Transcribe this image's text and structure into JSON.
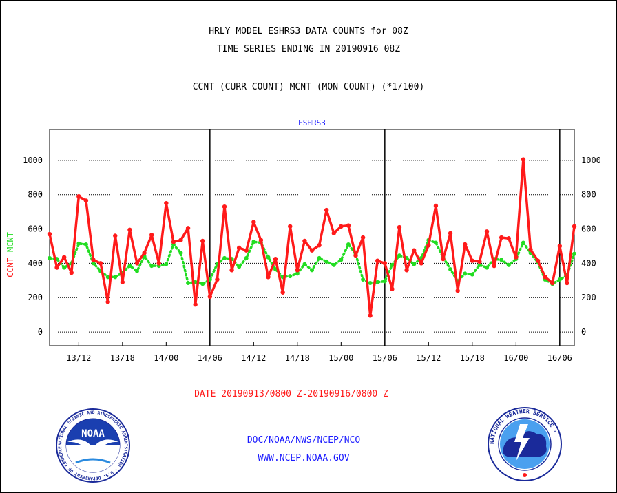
{
  "header": {
    "line1": "HRLY MODEL ESHRS3 DATA COUNTS for 08Z",
    "line2": "TIME SERIES ENDING IN 20190916 08Z",
    "line3": "CCNT (CURR COUNT) MCNT (MON COUNT) (*1/100)"
  },
  "footer": {
    "date_range": "DATE 20190913/0800 Z-20190916/0800 Z",
    "org": "DOC/NOAA/NWS/NCEP/NCO",
    "url": "WWW.NCEP.NOAA.GOV"
  },
  "logos": {
    "noaa_text": "NOAA",
    "noaa_ring": "NATIONAL OCEANIC AND ATMOSPHERIC ADMINISTRATION · U.S. DEPARTMENT OF COMMERCE ·",
    "nws_ring": "NATIONAL WEATHER SERVICE ·"
  },
  "colors": {
    "ccnt": "#ff1a1a",
    "mcnt": "#22dd22",
    "title_blue": "#1a1aff",
    "date_red": "#ff1a1a"
  },
  "chart_data": {
    "type": "line",
    "title": "ESHRS3",
    "ylabel": [
      "CCNT",
      "MCNT"
    ],
    "ylim": [
      -80,
      1180
    ],
    "yticks": [
      0,
      200,
      400,
      600,
      800,
      1000
    ],
    "x_tick_labels": [
      "13/12",
      "13/18",
      "14/00",
      "14/06",
      "14/12",
      "14/18",
      "15/00",
      "15/06",
      "15/12",
      "15/18",
      "16/00",
      "16/06"
    ],
    "x_tick_hours": [
      4,
      10,
      16,
      22,
      28,
      34,
      40,
      46,
      52,
      58,
      64,
      70
    ],
    "x_range_hours": [
      0,
      72
    ],
    "day_boundaries_hours": [
      22,
      46,
      70
    ],
    "grid": "horizontal dotted",
    "series": [
      {
        "name": "CCNT",
        "style": "solid",
        "x": [
          0,
          1,
          2,
          3,
          4,
          5,
          6,
          7,
          8,
          9,
          10,
          11,
          12,
          13,
          14,
          15,
          16,
          17,
          18,
          19,
          20,
          21,
          22,
          23,
          24,
          25,
          26,
          27,
          28,
          29,
          30,
          31,
          32,
          33,
          34,
          35,
          36,
          37,
          38,
          39,
          40,
          41,
          42,
          43,
          44,
          45,
          46,
          47,
          48,
          49,
          50,
          51,
          52,
          53,
          54,
          55,
          56,
          57,
          58,
          59,
          60,
          61,
          62,
          63,
          64,
          65,
          66,
          67,
          68,
          69,
          70,
          71,
          72
        ],
        "values": [
          570,
          375,
          435,
          345,
          790,
          765,
          420,
          400,
          175,
          560,
          290,
          595,
          400,
          460,
          565,
          400,
          750,
          525,
          535,
          605,
          160,
          530,
          205,
          305,
          730,
          360,
          490,
          475,
          640,
          535,
          320,
          425,
          230,
          615,
          360,
          530,
          475,
          505,
          710,
          575,
          615,
          620,
          445,
          550,
          95,
          415,
          400,
          250,
          610,
          360,
          475,
          400,
          505,
          735,
          425,
          575,
          240,
          510,
          415,
          410,
          585,
          385,
          550,
          545,
          435,
          1005,
          480,
          415,
          320,
          285,
          500,
          285,
          615
        ]
      },
      {
        "name": "MCNT",
        "style": "dotted",
        "x": [
          0,
          1,
          2,
          3,
          4,
          5,
          6,
          7,
          8,
          9,
          10,
          11,
          12,
          13,
          14,
          15,
          16,
          17,
          18,
          19,
          20,
          21,
          22,
          23,
          24,
          25,
          26,
          27,
          28,
          29,
          30,
          31,
          32,
          33,
          34,
          35,
          36,
          37,
          38,
          39,
          40,
          41,
          42,
          43,
          44,
          45,
          46,
          47,
          48,
          49,
          50,
          51,
          52,
          53,
          54,
          55,
          56,
          57,
          58,
          59,
          60,
          61,
          62,
          63,
          64,
          65,
          66,
          67,
          68,
          69,
          70,
          71,
          72
        ],
        "values": [
          430,
          425,
          375,
          400,
          515,
          510,
          400,
          355,
          320,
          320,
          345,
          385,
          355,
          440,
          385,
          385,
          395,
          510,
          460,
          285,
          290,
          280,
          305,
          395,
          430,
          425,
          380,
          430,
          525,
          520,
          435,
          365,
          320,
          325,
          340,
          395,
          360,
          430,
          410,
          390,
          420,
          510,
          455,
          305,
          285,
          290,
          295,
          390,
          445,
          430,
          395,
          430,
          535,
          520,
          435,
          365,
          295,
          340,
          335,
          390,
          375,
          425,
          420,
          390,
          425,
          520,
          460,
          405,
          305,
          280,
          305,
          330,
          455
        ]
      }
    ]
  }
}
